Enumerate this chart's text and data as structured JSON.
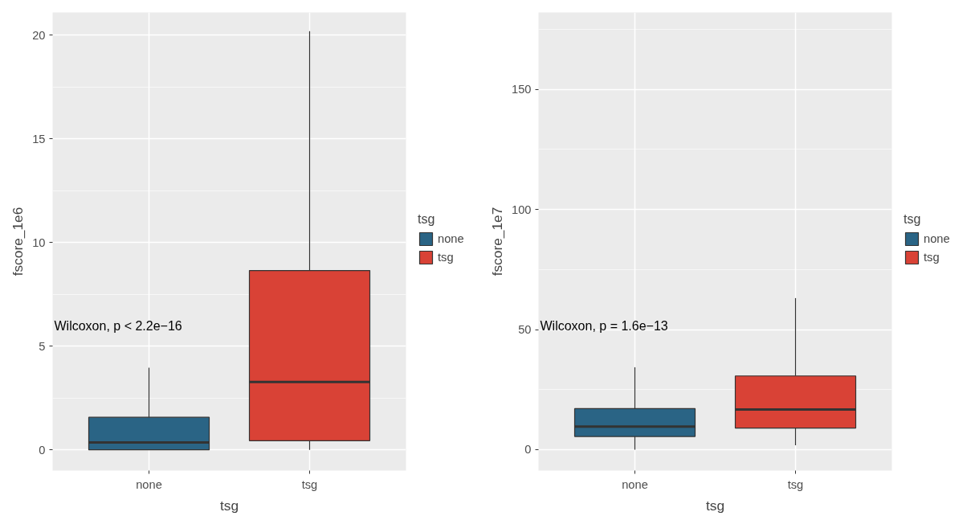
{
  "chart_data": [
    {
      "type": "box",
      "categories": [
        "none",
        "tsg"
      ],
      "xlabel": "tsg",
      "ylabel": "fscore_1e6",
      "legend_title": "tsg",
      "legend": "right",
      "grid": true,
      "ylim": [
        -1.0,
        21.1
      ],
      "yticks": [
        0,
        5,
        10,
        15,
        20
      ],
      "annotations": [
        "Wilcoxon, p < 2.2e−16"
      ],
      "series": [
        {
          "name": "none",
          "color": "#2a6485",
          "boxes": [
            {
              "low": 0,
              "q1": 0,
              "median": 0.36,
              "q3": 1.57,
              "high": 3.96
            },
            null
          ]
        },
        {
          "name": "tsg",
          "color": "#d94236",
          "boxes": [
            null,
            {
              "low": 0,
              "q1": 0.44,
              "median": 3.27,
              "q3": 8.65,
              "high": 20.2
            }
          ]
        }
      ]
    },
    {
      "type": "box",
      "categories": [
        "none",
        "tsg"
      ],
      "xlabel": "tsg",
      "ylabel": "fscore_1e7",
      "legend_title": "tsg",
      "legend": "right",
      "grid": true,
      "ylim": [
        -8.7,
        182
      ],
      "yticks": [
        0,
        50,
        100,
        150
      ],
      "annotations": [
        "Wilcoxon, p = 1.6e−13"
      ],
      "series": [
        {
          "name": "none",
          "color": "#2a6485",
          "boxes": [
            {
              "low": 0,
              "q1": 5.5,
              "median": 9.6,
              "q3": 17.1,
              "high": 34.3
            },
            null
          ]
        },
        {
          "name": "tsg",
          "color": "#d94236",
          "boxes": [
            null,
            {
              "low": 1.8,
              "q1": 9.0,
              "median": 16.7,
              "q3": 30.7,
              "high": 63.1
            }
          ]
        }
      ]
    }
  ]
}
